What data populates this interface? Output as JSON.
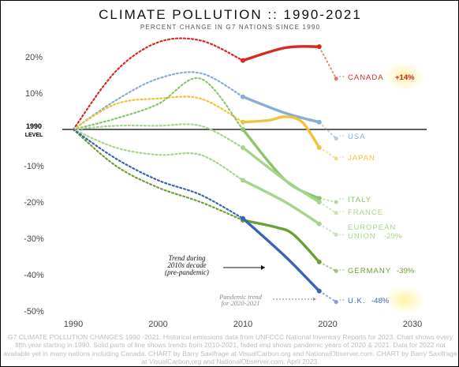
{
  "chart_data": {
    "type": "line",
    "title": "CLIMATE POLLUTION :: 1990-2021",
    "subtitle": "PERCENT CHANGE IN G7 NATIONS SINCE 1990",
    "xlabel": "",
    "ylabel": "",
    "xlim": [
      1985,
      2032
    ],
    "ylim": [
      -52,
      26
    ],
    "x_ticks": [
      "1990",
      "2000",
      "2010",
      "2020",
      "2030"
    ],
    "y_ticks": [
      "20%",
      "10%",
      "-10%",
      "-20%",
      "-30%",
      "-40%",
      "-50%"
    ],
    "baseline_label": [
      "1990",
      "LEVEL"
    ],
    "grid": false,
    "series": [
      {
        "name": "CANADA",
        "end_label": "+14%",
        "color": "#d62a1e",
        "dashed": [
          [
            1990,
            0
          ],
          [
            1995,
            16
          ],
          [
            2000,
            24
          ],
          [
            2005,
            24.5
          ],
          [
            2010,
            19
          ]
        ],
        "solid": [
          [
            2010,
            19
          ],
          [
            2015,
            22.5
          ],
          [
            2019,
            22.8
          ]
        ],
        "faded": [
          [
            2019,
            22.8
          ],
          [
            2021,
            14
          ]
        ]
      },
      {
        "name": "USA",
        "end_label": "",
        "color": "#86add5",
        "dashed": [
          [
            1990,
            0
          ],
          [
            1995,
            8
          ],
          [
            2000,
            14
          ],
          [
            2005,
            15.5
          ],
          [
            2010,
            9
          ]
        ],
        "solid": [
          [
            2010,
            9
          ],
          [
            2015,
            4.5
          ],
          [
            2019,
            2
          ]
        ],
        "faded": [
          [
            2019,
            2
          ],
          [
            2021,
            -2.5
          ]
        ]
      },
      {
        "name": "JAPAN",
        "end_label": "",
        "color": "#f0c33a",
        "dashed": [
          [
            1990,
            0
          ],
          [
            1995,
            7
          ],
          [
            2000,
            8.5
          ],
          [
            2005,
            8.5
          ],
          [
            2010,
            2
          ]
        ],
        "solid": [
          [
            2010,
            2
          ],
          [
            2013,
            2.5
          ],
          [
            2015,
            3.5
          ],
          [
            2017,
            2
          ],
          [
            2019,
            -5
          ]
        ],
        "faded": [
          [
            2019,
            -5
          ],
          [
            2021,
            -8
          ]
        ]
      },
      {
        "name": "ITALY",
        "end_label": "",
        "color": "#8cc46c",
        "dashed": [
          [
            1990,
            0
          ],
          [
            1995,
            3
          ],
          [
            2000,
            7
          ],
          [
            2005,
            14
          ],
          [
            2010,
            0
          ]
        ],
        "solid": [
          [
            2010,
            0
          ],
          [
            2015,
            -14
          ],
          [
            2019,
            -19
          ]
        ],
        "faded": [
          [
            2019,
            -19
          ],
          [
            2021,
            -20
          ]
        ]
      },
      {
        "name": "FRANCE",
        "end_label": "",
        "color": "#a7d48c",
        "dashed": [
          [
            1990,
            0
          ],
          [
            1995,
            1
          ],
          [
            2000,
            1
          ],
          [
            2005,
            1
          ],
          [
            2010,
            -5
          ]
        ],
        "solid": [
          [
            2010,
            -5
          ],
          [
            2015,
            -14
          ],
          [
            2019,
            -20
          ]
        ],
        "faded": [
          [
            2019,
            -20
          ],
          [
            2021,
            -23
          ]
        ]
      },
      {
        "name": "EUROPEAN UNION",
        "end_label": "-29%",
        "color": "#a7d48c",
        "dashed": [
          [
            1990,
            0
          ],
          [
            1995,
            -5
          ],
          [
            2000,
            -7
          ],
          [
            2005,
            -7
          ],
          [
            2010,
            -14
          ]
        ],
        "solid": [
          [
            2010,
            -14
          ],
          [
            2015,
            -20
          ],
          [
            2019,
            -26
          ]
        ],
        "faded": [
          [
            2019,
            -26
          ],
          [
            2021,
            -29
          ]
        ]
      },
      {
        "name": "GERMANY",
        "end_label": "-39%",
        "color": "#6c9f36",
        "dashed": [
          [
            1990,
            0
          ],
          [
            1995,
            -10
          ],
          [
            2000,
            -16
          ],
          [
            2005,
            -20
          ],
          [
            2010,
            -25
          ]
        ],
        "solid": [
          [
            2010,
            -25
          ],
          [
            2014,
            -27
          ],
          [
            2016,
            -29
          ],
          [
            2019,
            -36.5
          ]
        ],
        "faded": [
          [
            2019,
            -36.5
          ],
          [
            2021,
            -39
          ]
        ]
      },
      {
        "name": "U.K.",
        "end_label": "-48%",
        "color": "#3a63b5",
        "dashed": [
          [
            1990,
            0
          ],
          [
            1995,
            -8
          ],
          [
            2000,
            -14
          ],
          [
            2005,
            -18
          ],
          [
            2010,
            -24.5
          ]
        ],
        "solid": [
          [
            2010,
            -24.5
          ],
          [
            2015,
            -35
          ],
          [
            2019,
            -44.5
          ]
        ],
        "faded": [
          [
            2019,
            -44.5
          ],
          [
            2021,
            -47.5
          ]
        ]
      }
    ],
    "annotations": [
      {
        "text": [
          "Trend during",
          "2010s decade",
          "(pre-pandemic)"
        ]
      },
      {
        "text": [
          "Pandemic trend",
          "for 2020-2021"
        ]
      }
    ]
  },
  "footer": "G7 CLIMATE POLLUTION CHANGES 1990 -2021. Historical emissions data from UNFCCC National Inventory Reports for 2023. Chart shows every fifth year starting in 1990. Solid parts of line shows trends from 2010-2021, faded end shows pandemic years of 2020 & 2021. Data for 2022 not available yet in many nations including Canada. CHART by Barry Saxifrage at VisualCarbon.org and NationalObserver.com. CHART by Barry Saxifrage at VisualCarbon.org and NationalObserver.com. April 2023."
}
